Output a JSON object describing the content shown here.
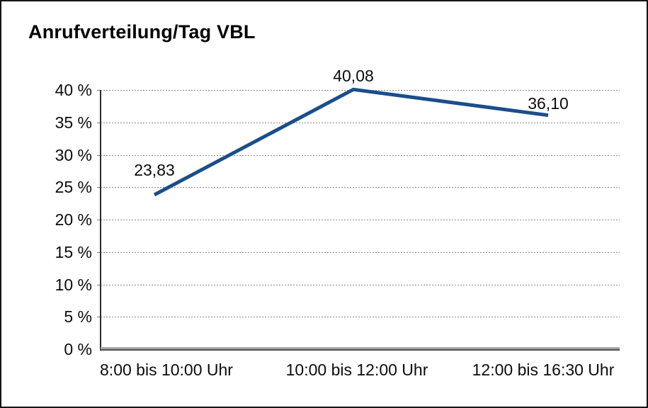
{
  "window": {
    "background_color": "#ffffff",
    "border_color": "#141414"
  },
  "chart_data": {
    "type": "line",
    "title": "Anrufverteilung/Tag VBL",
    "categories": [
      "8:00 bis 10:00 Uhr",
      "10:00 bis 12:00 Uhr",
      "12:00 bis 16:30 Uhr"
    ],
    "series": [
      {
        "name": "Anrufverteilung/Tag VBL",
        "values": [
          23.83,
          40.08,
          36.1
        ],
        "point_labels": [
          "23,83",
          "40,08",
          "36,10"
        ],
        "color": "#1a4e8c",
        "line_width": 5
      }
    ],
    "xlabel": "",
    "ylabel": "",
    "ylim": [
      0,
      40
    ],
    "y_tick_step": 5,
    "y_tick_labels": [
      "40 %",
      "35 %",
      "30 %",
      "25 %",
      "20 %",
      "15 %",
      "10 %",
      "5 %",
      "0 %"
    ],
    "grid": {
      "horizontal": true,
      "vertical": false,
      "style": "dotted",
      "color": "#8a8a8a"
    },
    "legend": "none",
    "axis_colors": {
      "y_axis": "#2b2b2b",
      "x_axis": "#4f4f4f"
    }
  }
}
